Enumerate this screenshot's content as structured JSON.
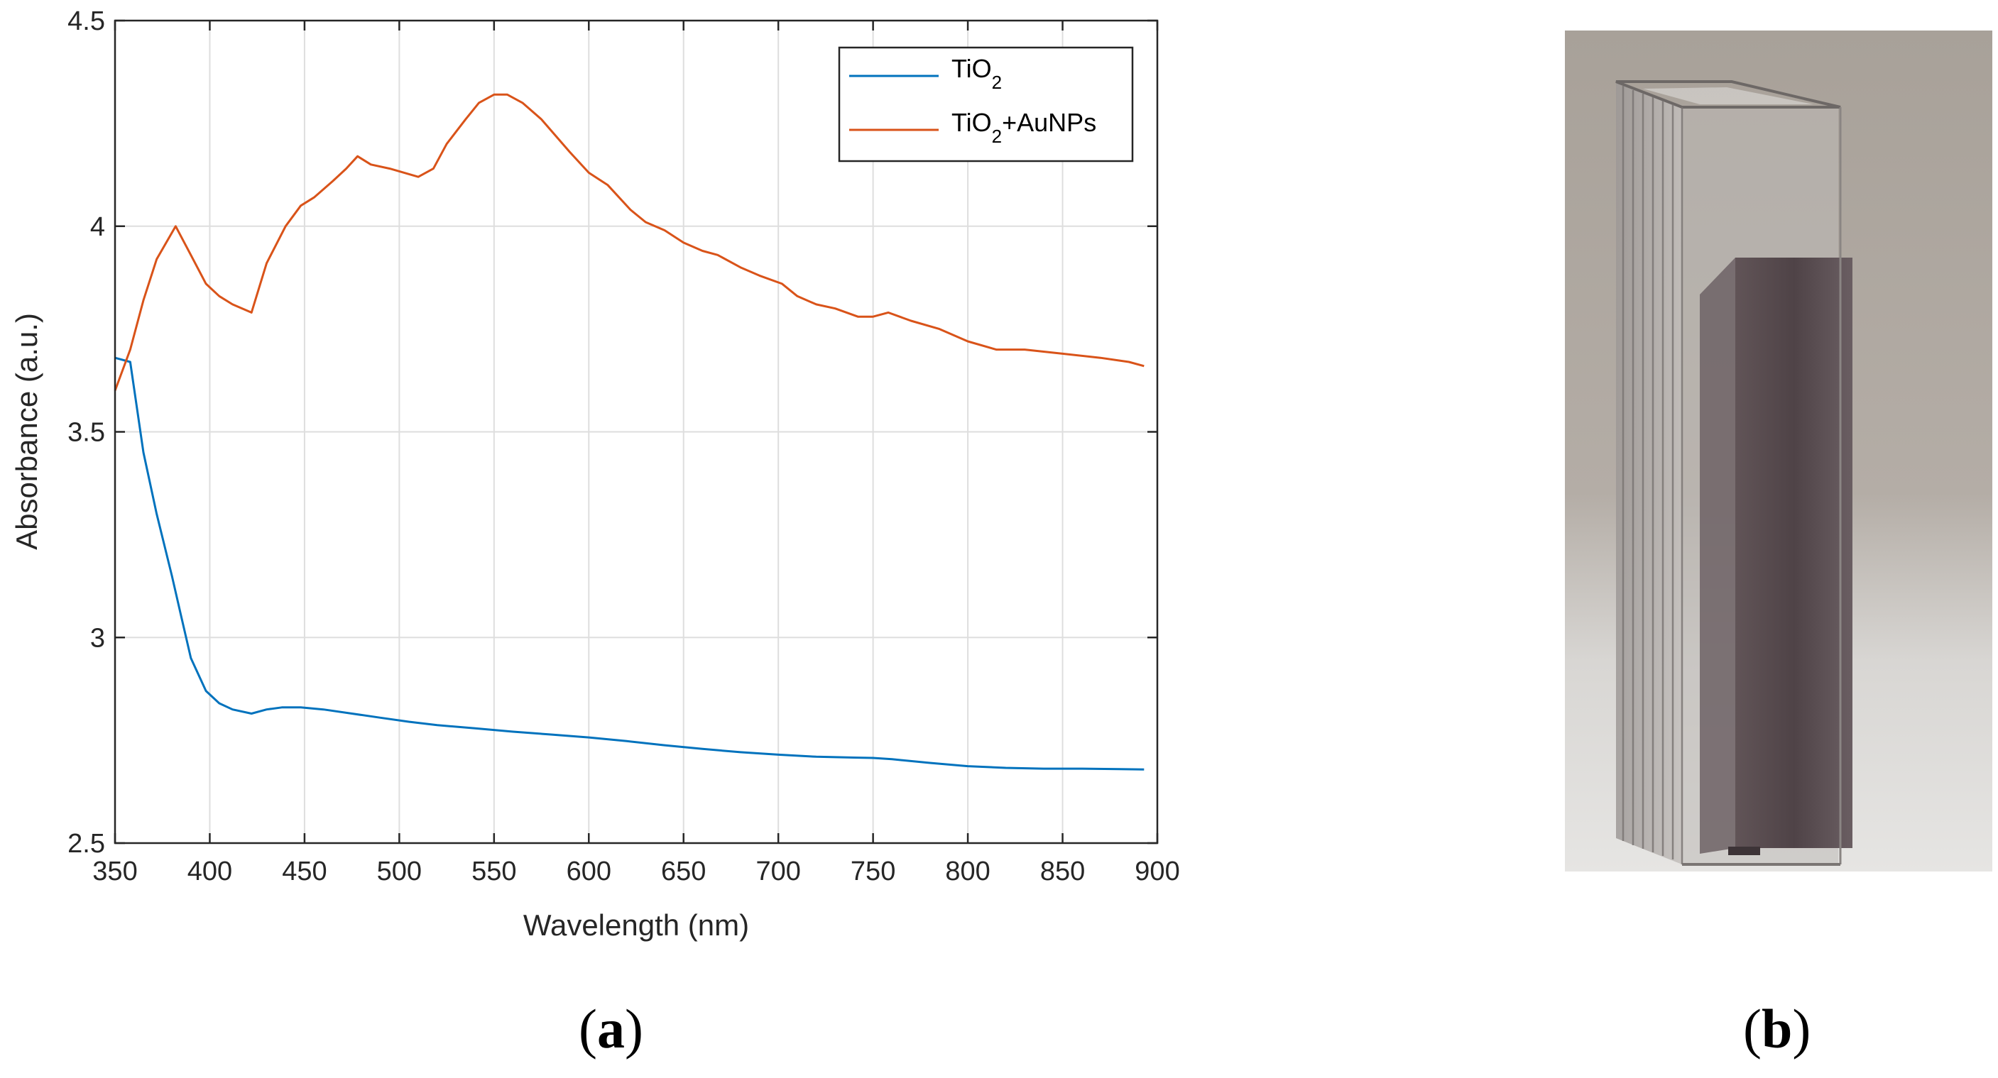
{
  "chart_data": {
    "type": "line",
    "title": "",
    "xlabel": "Wavelength (nm)",
    "ylabel": "Absorbance (a.u.)",
    "xlim": [
      350,
      900
    ],
    "ylim": [
      2.5,
      4.5
    ],
    "xticks": [
      350,
      400,
      450,
      500,
      550,
      600,
      650,
      700,
      750,
      800,
      850,
      900
    ],
    "yticks": [
      2.5,
      3,
      3.5,
      4,
      4.5
    ],
    "ytick_labels": [
      "2.5",
      "3",
      "3.5",
      "4",
      "4.5"
    ],
    "grid": true,
    "legend_position": "top-right",
    "series": [
      {
        "name": "TiO2",
        "legend_base": "TiO",
        "legend_sub": "2",
        "legend_suffix": "",
        "color": "#0072BD",
        "x": [
          350,
          358,
          365,
          372,
          380,
          385,
          390,
          398,
          405,
          412,
          422,
          430,
          438,
          448,
          460,
          475,
          490,
          505,
          520,
          540,
          560,
          580,
          600,
          620,
          640,
          660,
          680,
          700,
          720,
          740,
          750,
          760,
          780,
          800,
          820,
          840,
          860,
          880,
          893
        ],
        "y": [
          3.68,
          3.67,
          3.45,
          3.3,
          3.15,
          3.05,
          2.95,
          2.87,
          2.84,
          2.825,
          2.815,
          2.825,
          2.83,
          2.83,
          2.825,
          2.815,
          2.805,
          2.795,
          2.787,
          2.779,
          2.771,
          2.764,
          2.757,
          2.748,
          2.738,
          2.729,
          2.721,
          2.715,
          2.71,
          2.708,
          2.707,
          2.704,
          2.695,
          2.687,
          2.683,
          2.681,
          2.681,
          2.68,
          2.679
        ]
      },
      {
        "name": "TiO2+AuNPs",
        "legend_base": "TiO",
        "legend_sub": "2",
        "legend_suffix": "+AuNPs",
        "color": "#D95319",
        "x": [
          350,
          358,
          365,
          372,
          382,
          390,
          398,
          405,
          412,
          422,
          430,
          440,
          448,
          455,
          465,
          472,
          478,
          485,
          495,
          510,
          518,
          525,
          535,
          542,
          550,
          557,
          565,
          575,
          590,
          600,
          610,
          622,
          630,
          640,
          650,
          660,
          668,
          680,
          690,
          702,
          710,
          720,
          730,
          742,
          750,
          758,
          770,
          785,
          800,
          815,
          830,
          850,
          870,
          885,
          893
        ],
        "y": [
          3.6,
          3.7,
          3.82,
          3.92,
          4.0,
          3.93,
          3.86,
          3.83,
          3.81,
          3.79,
          3.91,
          4.0,
          4.05,
          4.07,
          4.11,
          4.14,
          4.17,
          4.15,
          4.14,
          4.12,
          4.14,
          4.2,
          4.26,
          4.3,
          4.32,
          4.32,
          4.3,
          4.26,
          4.18,
          4.13,
          4.1,
          4.04,
          4.01,
          3.99,
          3.96,
          3.94,
          3.93,
          3.9,
          3.88,
          3.86,
          3.83,
          3.81,
          3.8,
          3.78,
          3.78,
          3.79,
          3.77,
          3.75,
          3.72,
          3.7,
          3.7,
          3.69,
          3.68,
          3.67,
          3.66
        ]
      }
    ]
  },
  "panels": {
    "a": "a",
    "b": "b",
    "open": "(",
    "close": ")"
  }
}
